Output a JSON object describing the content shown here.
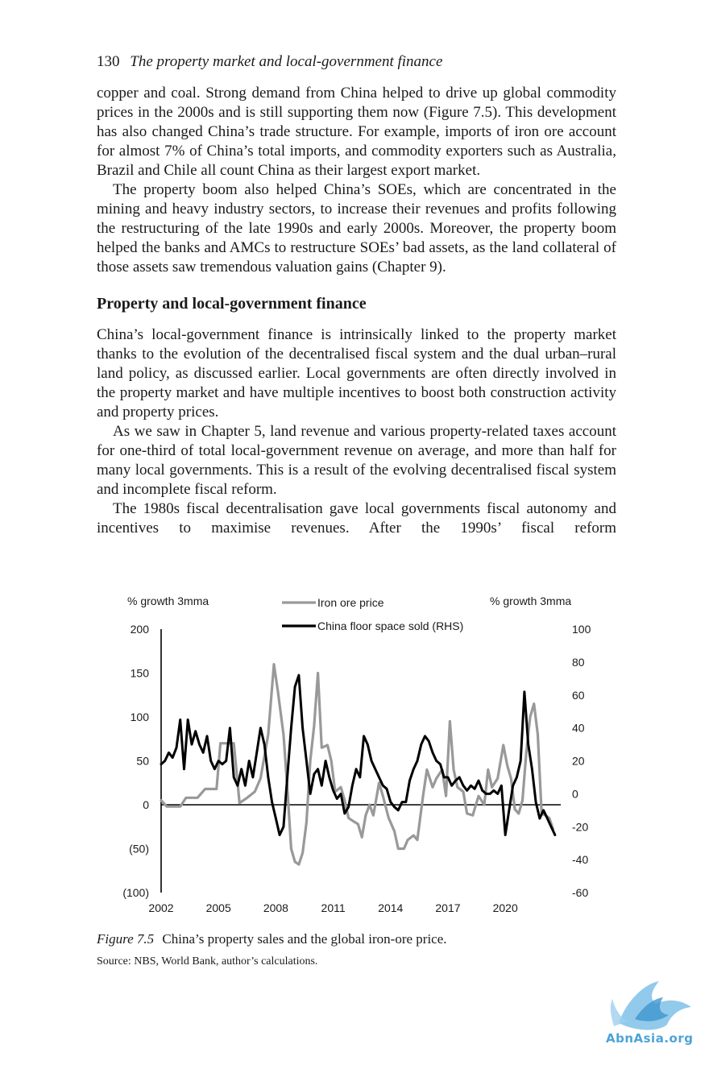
{
  "header": {
    "page_number": "130",
    "running_title": "The property market and local-government finance"
  },
  "body": {
    "p1": "copper and coal. Strong demand from China helped to drive up global com­modity prices in the 2000s and is still supporting them now (Figure 7.5). This development has also changed China’s trade structure. For example, imports of iron ore account for almost 7% of China’s total imports, and commodity exporters such as Australia, Brazil and Chile all count China as their largest export market.",
    "p2": "The property boom also helped China’s SOEs, which are concentrated in the mining and heavy industry sectors, to increase their revenues and profits fol­lowing the restructuring of the late 1990s and early 2000s. Moreover, the property boom helped the banks and AMCs to restructure SOEs’ bad assets, as the land collateral of those assets saw tremendous valuation gains (Chapter 9).",
    "heading": "Property and local-government finance",
    "p3": "China’s local-government finance is intrinsically linked to the property mar­ket thanks to the evolution of the decentralised fiscal system and the dual urban–rural land policy, as discussed earlier. Local governments are often directly involved in the property market and have multiple incentives to boost both construction activity and property prices.",
    "p4": "As we saw in Chapter 5, land revenue and various property-related taxes account for one-third of total local-government revenue on average, and more than half for many local governments. This is a result of the evolving decentralised fiscal system and incomplete fiscal reform.",
    "p5": "The 1980s fiscal decentralisation gave local governments fiscal autonomy and incentives to maximise revenues. After the 1990s’ fiscal reform"
  },
  "figure": {
    "label": "Figure 7.5",
    "caption": "China’s property sales and the global iron-ore price.",
    "source": "Source: NBS, World Bank, author’s calculations."
  },
  "watermark": {
    "text": "AbnAsia.org"
  },
  "chart_data": {
    "type": "line",
    "left_axis_label": "% growth 3mma",
    "right_axis_label": "% growth 3mma",
    "left_ticks": [
      "200",
      "150",
      "100",
      "50",
      "0",
      "(50)",
      "(100)"
    ],
    "left_tick_values": [
      200,
      150,
      100,
      50,
      0,
      -50,
      -100
    ],
    "right_ticks": [
      "100",
      "80",
      "60",
      "40",
      "20",
      "0",
      "-20",
      "-40",
      "-60"
    ],
    "right_tick_values": [
      100,
      80,
      60,
      40,
      20,
      0,
      -20,
      -40,
      -60
    ],
    "x_ticks": [
      "2002",
      "2005",
      "2008",
      "2011",
      "2014",
      "2017",
      "2020"
    ],
    "x_tick_values": [
      2002,
      2005,
      2008,
      2011,
      2014,
      2017,
      2020
    ],
    "xlim": [
      2002,
      2022.9
    ],
    "ylim_left": [
      -100,
      200
    ],
    "ylim_right": [
      -60,
      100
    ],
    "grid": false,
    "legend_placement": "top-center",
    "series": [
      {
        "name": "Iron ore price",
        "axis": "left",
        "color": "#999999",
        "points": [
          [
            2002.0,
            5
          ],
          [
            2002.3,
            -2
          ],
          [
            2003.0,
            -2
          ],
          [
            2003.3,
            8
          ],
          [
            2003.9,
            8
          ],
          [
            2004.3,
            18
          ],
          [
            2004.9,
            18
          ],
          [
            2005.1,
            70
          ],
          [
            2005.8,
            70
          ],
          [
            2006.1,
            2
          ],
          [
            2006.5,
            8
          ],
          [
            2006.9,
            15
          ],
          [
            2007.2,
            30
          ],
          [
            2007.6,
            80
          ],
          [
            2007.9,
            160
          ],
          [
            2008.1,
            130
          ],
          [
            2008.4,
            80
          ],
          [
            2008.6,
            20
          ],
          [
            2008.8,
            -50
          ],
          [
            2009.0,
            -65
          ],
          [
            2009.2,
            -68
          ],
          [
            2009.4,
            -55
          ],
          [
            2009.6,
            -20
          ],
          [
            2009.8,
            50
          ],
          [
            2010.0,
            90
          ],
          [
            2010.2,
            150
          ],
          [
            2010.4,
            65
          ],
          [
            2010.7,
            68
          ],
          [
            2010.9,
            50
          ],
          [
            2011.1,
            15
          ],
          [
            2011.4,
            20
          ],
          [
            2011.6,
            5
          ],
          [
            2011.8,
            -15
          ],
          [
            2012.0,
            -18
          ],
          [
            2012.3,
            -22
          ],
          [
            2012.5,
            -37
          ],
          [
            2012.7,
            -12
          ],
          [
            2012.9,
            0
          ],
          [
            2013.1,
            -12
          ],
          [
            2013.4,
            25
          ],
          [
            2013.6,
            10
          ],
          [
            2013.9,
            -15
          ],
          [
            2014.2,
            -30
          ],
          [
            2014.4,
            -50
          ],
          [
            2014.7,
            -50
          ],
          [
            2014.9,
            -40
          ],
          [
            2015.2,
            -35
          ],
          [
            2015.4,
            -40
          ],
          [
            2015.7,
            10
          ],
          [
            2015.9,
            40
          ],
          [
            2016.2,
            20
          ],
          [
            2016.4,
            30
          ],
          [
            2016.7,
            40
          ],
          [
            2016.9,
            10
          ],
          [
            2017.1,
            95
          ],
          [
            2017.3,
            40
          ],
          [
            2017.5,
            20
          ],
          [
            2017.8,
            15
          ],
          [
            2018.0,
            -10
          ],
          [
            2018.3,
            -12
          ],
          [
            2018.6,
            10
          ],
          [
            2018.9,
            0
          ],
          [
            2019.1,
            40
          ],
          [
            2019.3,
            20
          ],
          [
            2019.6,
            30
          ],
          [
            2019.9,
            68
          ],
          [
            2020.1,
            45
          ],
          [
            2020.3,
            30
          ],
          [
            2020.5,
            -5
          ],
          [
            2020.7,
            -10
          ],
          [
            2020.9,
            5
          ],
          [
            2021.1,
            60
          ],
          [
            2021.3,
            100
          ],
          [
            2021.5,
            115
          ],
          [
            2021.7,
            80
          ],
          [
            2021.9,
            -10
          ],
          [
            2022.1,
            -12
          ],
          [
            2022.3,
            -15
          ],
          [
            2022.5,
            -28
          ]
        ]
      },
      {
        "name": "China floor space sold (RHS)",
        "axis": "right",
        "color": "#000000",
        "points": [
          [
            2002.0,
            18
          ],
          [
            2002.2,
            20
          ],
          [
            2002.4,
            25
          ],
          [
            2002.6,
            22
          ],
          [
            2002.8,
            28
          ],
          [
            2003.0,
            45
          ],
          [
            2003.2,
            15
          ],
          [
            2003.4,
            45
          ],
          [
            2003.6,
            30
          ],
          [
            2003.8,
            38
          ],
          [
            2004.0,
            30
          ],
          [
            2004.2,
            25
          ],
          [
            2004.4,
            35
          ],
          [
            2004.6,
            20
          ],
          [
            2004.8,
            15
          ],
          [
            2005.0,
            20
          ],
          [
            2005.2,
            18
          ],
          [
            2005.4,
            20
          ],
          [
            2005.6,
            40
          ],
          [
            2005.8,
            10
          ],
          [
            2006.0,
            5
          ],
          [
            2006.2,
            15
          ],
          [
            2006.4,
            5
          ],
          [
            2006.6,
            20
          ],
          [
            2006.8,
            10
          ],
          [
            2007.0,
            25
          ],
          [
            2007.2,
            40
          ],
          [
            2007.4,
            30
          ],
          [
            2007.6,
            10
          ],
          [
            2007.8,
            -5
          ],
          [
            2008.0,
            -15
          ],
          [
            2008.2,
            -25
          ],
          [
            2008.4,
            -20
          ],
          [
            2008.6,
            10
          ],
          [
            2008.8,
            40
          ],
          [
            2009.0,
            65
          ],
          [
            2009.2,
            72
          ],
          [
            2009.4,
            40
          ],
          [
            2009.6,
            20
          ],
          [
            2009.8,
            0
          ],
          [
            2010.0,
            12
          ],
          [
            2010.2,
            15
          ],
          [
            2010.4,
            5
          ],
          [
            2010.6,
            20
          ],
          [
            2010.8,
            10
          ],
          [
            2011.0,
            2
          ],
          [
            2011.2,
            -3
          ],
          [
            2011.4,
            0
          ],
          [
            2011.6,
            -12
          ],
          [
            2011.8,
            -8
          ],
          [
            2012.0,
            5
          ],
          [
            2012.2,
            15
          ],
          [
            2012.4,
            10
          ],
          [
            2012.6,
            35
          ],
          [
            2012.8,
            30
          ],
          [
            2013.0,
            20
          ],
          [
            2013.2,
            15
          ],
          [
            2013.4,
            10
          ],
          [
            2013.6,
            5
          ],
          [
            2013.8,
            3
          ],
          [
            2014.0,
            -5
          ],
          [
            2014.2,
            -8
          ],
          [
            2014.4,
            -10
          ],
          [
            2014.6,
            -5
          ],
          [
            2014.8,
            -5
          ],
          [
            2015.0,
            8
          ],
          [
            2015.2,
            15
          ],
          [
            2015.4,
            20
          ],
          [
            2015.6,
            30
          ],
          [
            2015.8,
            35
          ],
          [
            2016.0,
            32
          ],
          [
            2016.2,
            25
          ],
          [
            2016.4,
            20
          ],
          [
            2016.6,
            18
          ],
          [
            2016.8,
            10
          ],
          [
            2017.0,
            10
          ],
          [
            2017.2,
            5
          ],
          [
            2017.4,
            8
          ],
          [
            2017.6,
            10
          ],
          [
            2017.8,
            5
          ],
          [
            2018.0,
            2
          ],
          [
            2018.2,
            5
          ],
          [
            2018.4,
            3
          ],
          [
            2018.6,
            8
          ],
          [
            2018.8,
            2
          ],
          [
            2019.0,
            0
          ],
          [
            2019.2,
            0
          ],
          [
            2019.4,
            2
          ],
          [
            2019.6,
            0
          ],
          [
            2019.8,
            5
          ],
          [
            2020.0,
            -25
          ],
          [
            2020.2,
            -10
          ],
          [
            2020.4,
            5
          ],
          [
            2020.6,
            10
          ],
          [
            2020.8,
            20
          ],
          [
            2020.9,
            40
          ],
          [
            2021.0,
            62
          ],
          [
            2021.2,
            30
          ],
          [
            2021.4,
            15
          ],
          [
            2021.6,
            -5
          ],
          [
            2021.8,
            -15
          ],
          [
            2022.0,
            -10
          ],
          [
            2022.2,
            -15
          ],
          [
            2022.4,
            -20
          ],
          [
            2022.6,
            -25
          ]
        ]
      }
    ]
  }
}
